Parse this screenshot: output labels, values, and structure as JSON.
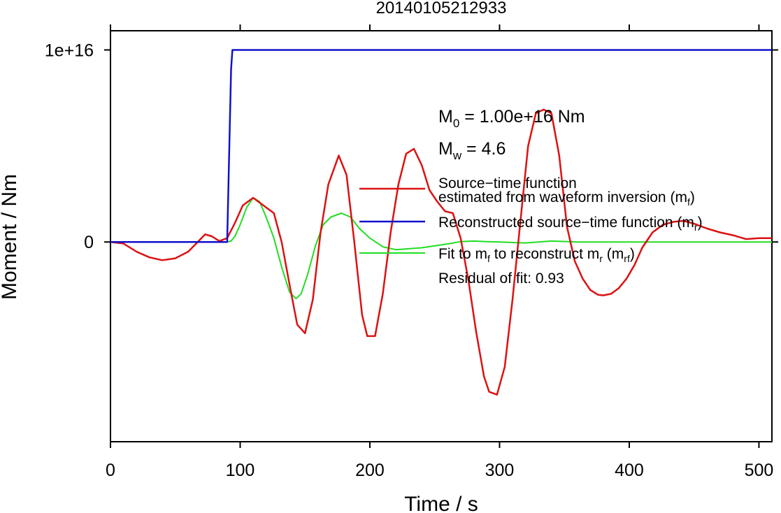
{
  "chart_data": {
    "type": "line",
    "title": "20140105212933",
    "xlabel": "Time / s",
    "ylabel": "Moment / Nm",
    "xlim": [
      0,
      510
    ],
    "ylim": [
      -1.04e+16,
      1.1e+16
    ],
    "x_ticks": [
      0,
      100,
      200,
      300,
      400,
      500
    ],
    "x_tick_labels": [
      "0",
      "100",
      "200",
      "300",
      "400",
      "500"
    ],
    "y_ticks": [
      0,
      1e+16
    ],
    "y_tick_labels": [
      "0",
      "1e+16"
    ],
    "grid": false,
    "legend_position": "right-middle",
    "annotations": {
      "m0": {
        "base": "M",
        "sub": "0",
        "rest": " = 1.00e+16 Nm"
      },
      "mw": {
        "base": "M",
        "sub": "w",
        "rest": " = 4.6"
      },
      "residual": "Residual of fit: 0.93"
    },
    "legend": [
      {
        "line1": "Source−time function",
        "line2_pre": "estimated from waveform inversion (m",
        "line2_sub": "f",
        "line2_post": ")",
        "color": "#dd1111"
      },
      {
        "pre": "Reconstructed source−time function (m",
        "sub": "r",
        "post": ")",
        "color": "#1111cc"
      },
      {
        "pre": "Fit to m",
        "sub1": "f",
        "mid": " to reconstruct m",
        "sub2": "r",
        "mid2": " (m",
        "sub3": "rf",
        "post": ")",
        "color": "#22dd22"
      }
    ],
    "series": [
      {
        "name": "Source−time function estimated from waveform inversion (m_f)",
        "color": "#dd1111",
        "x": [
          0,
          10,
          20,
          30,
          40,
          50,
          60,
          68,
          73,
          78,
          84,
          90,
          96,
          102,
          110,
          118,
          126,
          132,
          138,
          144,
          150,
          156,
          162,
          168,
          176,
          182,
          188,
          194,
          198,
          204,
          210,
          216,
          222,
          228,
          234,
          240,
          246,
          252,
          258,
          264,
          270,
          276,
          282,
          288,
          292,
          298,
          304,
          310,
          316,
          322,
          328,
          334,
          340,
          346,
          352,
          358,
          364,
          370,
          376,
          380,
          386,
          392,
          398,
          404,
          410,
          418,
          426,
          434,
          442,
          450,
          460,
          470,
          480,
          490,
          500,
          510
        ],
        "y": [
          0,
          -80000000000000.0,
          -500000000000000.0,
          -800000000000000.0,
          -950000000000000.0,
          -850000000000000.0,
          -500000000000000.0,
          50000000000000.0,
          400000000000000.0,
          300000000000000.0,
          50000000000000.0,
          200000000000000.0,
          1000000000000000.0,
          1900000000000000.0,
          2300000000000000.0,
          1900000000000000.0,
          1500000000000000.0,
          0.0,
          -2200000000000000.0,
          -4300000000000000.0,
          -4750000000000000.0,
          -3000000000000000.0,
          500000000000000.0,
          3000000000000000.0,
          4500000000000000.0,
          3500000000000000.0,
          0.0,
          -3800000000000000.0,
          -4900000000000000.0,
          -4900000000000000.0,
          -2700000000000000.0,
          500000000000000.0,
          3000000000000000.0,
          4600000000000000.0,
          4850000000000000.0,
          4000000000000000.0,
          2700000000000000.0,
          2100000000000000.0,
          1600000000000000.0,
          1500000000000000.0,
          200000000000000.0,
          -2000000000000000.0,
          -4700000000000000.0,
          -7000000000000000.0,
          -7800000000000000.0,
          -7950000000000000.0,
          -6500000000000000.0,
          -3000000000000000.0,
          1000000000000000.0,
          5000000000000000.0,
          6700000000000000.0,
          6900000000000000.0,
          6700000000000000.0,
          4500000000000000.0,
          800000000000000.0,
          -1000000000000000.0,
          -1900000000000000.0,
          -2500000000000000.0,
          -2750000000000000.0,
          -2780000000000000.0,
          -2700000000000000.0,
          -2400000000000000.0,
          -1900000000000000.0,
          -1200000000000000.0,
          -300000000000000.0,
          500000000000000.0,
          900000000000000.0,
          1050000000000000.0,
          1100000000000000.0,
          950000000000000.0,
          700000000000000.0,
          500000000000000.0,
          350000000000000.0,
          150000000000000.0,
          200000000000000.0,
          200000000000000.0
        ]
      },
      {
        "name": "Reconstructed source−time function (m_r)",
        "color": "#1111cc",
        "x": [
          0,
          90,
          93,
          94,
          510
        ],
        "y": [
          0,
          0,
          9000000000000000.0,
          1e+16,
          1e+16
        ]
      },
      {
        "name": "Fit to m_f to reconstruct m_r (m_rf)",
        "color": "#22dd22",
        "x": [
          0,
          90,
          93,
          96,
          100,
          105,
          110,
          115,
          120,
          126,
          132,
          138,
          143,
          147,
          152,
          158,
          164,
          170,
          178,
          185,
          192,
          200,
          210,
          220,
          230,
          240,
          250,
          260,
          270,
          280,
          290,
          300,
          320,
          340,
          360,
          380,
          400,
          450,
          510
        ],
        "y": [
          0,
          0,
          50000000000000.0,
          300000000000000.0,
          900000000000000.0,
          1800000000000000.0,
          2300000000000000.0,
          2100000000000000.0,
          1300000000000000.0,
          200000000000000.0,
          -1300000000000000.0,
          -2600000000000000.0,
          -2950000000000000.0,
          -2700000000000000.0,
          -1700000000000000.0,
          -200000000000000.0,
          900000000000000.0,
          1300000000000000.0,
          1500000000000000.0,
          1300000000000000.0,
          700000000000000.0,
          200000000000000.0,
          -250000000000000.0,
          -400000000000000.0,
          -350000000000000.0,
          -300000000000000.0,
          -200000000000000.0,
          -100000000000000.0,
          20000000000000.0,
          50000000000000.0,
          20000000000000.0,
          0.0,
          -50000000000000.0,
          50000000000000.0,
          0.0,
          0.0,
          0.0,
          0.0,
          0.0
        ]
      }
    ]
  }
}
